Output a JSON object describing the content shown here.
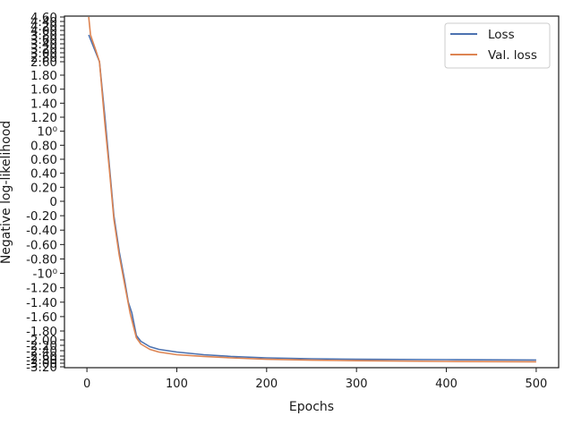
{
  "chart_data": {
    "type": "line",
    "xlabel": "Epochs",
    "ylabel": "Negative log-likelihood",
    "x_ticks": [
      "0",
      "100",
      "200",
      "300",
      "400",
      "500"
    ],
    "xlim": [
      -25,
      525
    ],
    "y_scale": "symlog",
    "y_ticks": [
      "4.60",
      "4.40",
      "4.20",
      "4.00",
      "3.80",
      "3.60",
      "3.40",
      "3.20",
      "3.00",
      "2.80",
      "2.60",
      "1.80",
      "1.60",
      "1.40",
      "1.20",
      "10⁰",
      "0.80",
      "0.60",
      "0.40",
      "0.20",
      "0",
      "-0.20",
      "-0.40",
      "-0.60",
      "-0.80",
      "-10⁰",
      "-1.20",
      "-1.40",
      "-1.60",
      "-1.80",
      "-2.00",
      "-2.20",
      "-2.40",
      "-2.60",
      "-2.80",
      "-3.00",
      "-3.20"
    ],
    "legend_position": "top-right",
    "grid": false,
    "series": [
      {
        "name": "Loss",
        "color": "#4c72b0",
        "points": [
          [
            2,
            3.8
          ],
          [
            8,
            3.2
          ],
          [
            14,
            2.6
          ],
          [
            20,
            1.2
          ],
          [
            25,
            0.5
          ],
          [
            30,
            -0.2
          ],
          [
            36,
            -0.7
          ],
          [
            42,
            -1.1
          ],
          [
            46,
            -1.4
          ],
          [
            50,
            -1.55
          ],
          [
            55,
            -1.9
          ],
          [
            60,
            -2.05
          ],
          [
            70,
            -2.25
          ],
          [
            80,
            -2.35
          ],
          [
            100,
            -2.45
          ],
          [
            130,
            -2.55
          ],
          [
            160,
            -2.62
          ],
          [
            200,
            -2.7
          ],
          [
            250,
            -2.75
          ],
          [
            300,
            -2.78
          ],
          [
            400,
            -2.8
          ],
          [
            500,
            -2.82
          ]
        ]
      },
      {
        "name": "Val. loss",
        "color": "#dd8452",
        "points": [
          [
            2,
            4.6
          ],
          [
            4,
            3.8
          ],
          [
            10,
            3.1
          ],
          [
            14,
            2.6
          ],
          [
            20,
            1.1
          ],
          [
            25,
            0.45
          ],
          [
            30,
            -0.25
          ],
          [
            36,
            -0.75
          ],
          [
            42,
            -1.15
          ],
          [
            48,
            -1.55
          ],
          [
            55,
            -1.95
          ],
          [
            60,
            -2.15
          ],
          [
            70,
            -2.35
          ],
          [
            80,
            -2.45
          ],
          [
            100,
            -2.55
          ],
          [
            130,
            -2.62
          ],
          [
            160,
            -2.7
          ],
          [
            200,
            -2.78
          ],
          [
            250,
            -2.83
          ],
          [
            300,
            -2.86
          ],
          [
            400,
            -2.9
          ],
          [
            500,
            -2.92
          ]
        ]
      }
    ]
  }
}
